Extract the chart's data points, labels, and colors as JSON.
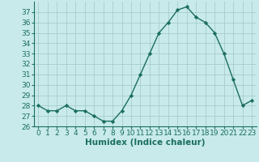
{
  "x": [
    0,
    1,
    2,
    3,
    4,
    5,
    6,
    7,
    8,
    9,
    10,
    11,
    12,
    13,
    14,
    15,
    16,
    17,
    18,
    19,
    20,
    21,
    22,
    23
  ],
  "y": [
    28,
    27.5,
    27.5,
    28,
    27.5,
    27.5,
    27,
    26.5,
    26.5,
    27.5,
    29,
    31,
    33,
    35,
    36,
    37.2,
    37.5,
    36.5,
    36,
    35,
    33,
    30.5,
    28,
    28.5
  ],
  "line_color": "#1a6e60",
  "marker": "D",
  "marker_size": 2.2,
  "bg_color": "#c8eaea",
  "grid_color": "#a8cccc",
  "xlabel": "Humidex (Indice chaleur)",
  "xlabel_fontsize": 7.5,
  "tick_fontsize": 6.5,
  "ylim": [
    26,
    38
  ],
  "yticks": [
    26,
    27,
    28,
    29,
    30,
    31,
    32,
    33,
    34,
    35,
    36,
    37
  ],
  "xlim": [
    -0.5,
    23.5
  ],
  "xticks": [
    0,
    1,
    2,
    3,
    4,
    5,
    6,
    7,
    8,
    9,
    10,
    11,
    12,
    13,
    14,
    15,
    16,
    17,
    18,
    19,
    20,
    21,
    22,
    23
  ],
  "line_width": 1.0,
  "text_color": "#1a6e60"
}
